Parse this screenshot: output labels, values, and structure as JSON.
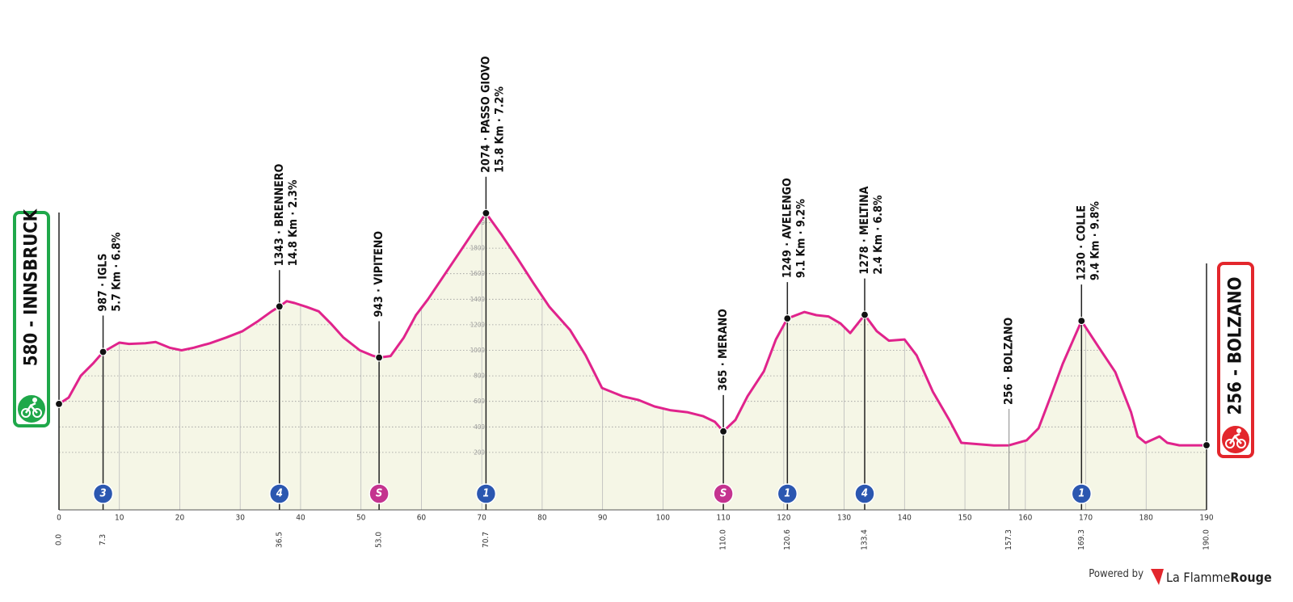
{
  "chart_data": {
    "type": "area",
    "color": "#e0238c",
    "fill": "#f5f6e6",
    "grid": true,
    "xlim": [
      0,
      190
    ],
    "xticks": [
      0,
      10,
      20,
      30,
      40,
      50,
      60,
      70,
      80,
      90,
      100,
      110,
      120,
      130,
      140,
      150,
      160,
      170,
      180,
      190
    ],
    "ylim": [
      -250,
      2500
    ],
    "yticks": [
      200,
      400,
      600,
      800,
      1000,
      1200,
      1400,
      1600,
      1800,
      2000
    ],
    "x": [
      0,
      1.6,
      3.6,
      5.6,
      7.3,
      10,
      11.6,
      14.3,
      16,
      18.3,
      20.3,
      22.3,
      25,
      27.7,
      30.4,
      33,
      35.2,
      36.5,
      37.7,
      39,
      41,
      43,
      45,
      47.1,
      49.8,
      51.8,
      53,
      54.9,
      57.1,
      59.1,
      61.1,
      63.8,
      66.5,
      69.2,
      70.7,
      73.2,
      75.9,
      78.5,
      81.2,
      84.6,
      87.2,
      89.9,
      93.3,
      96,
      98.6,
      101.3,
      104,
      106.6,
      108.6,
      110,
      112,
      114,
      116.7,
      118.7,
      120.6,
      123.4,
      125.4,
      127.4,
      129.4,
      131,
      133.4,
      135.4,
      137.4,
      140,
      142,
      144.7,
      147.4,
      149.4,
      152.1,
      154.8,
      157.3,
      160.2,
      162.2,
      164.2,
      166.2,
      169.3,
      172.2,
      174.9,
      177.5,
      178.6,
      179.9,
      182.2,
      183.5,
      185.5,
      190
    ],
    "values": [
      580,
      630,
      800,
      895,
      987,
      1060,
      1050,
      1055,
      1065,
      1020,
      1000,
      1020,
      1055,
      1100,
      1150,
      1230,
      1305,
      1343,
      1385,
      1370,
      1340,
      1305,
      1210,
      1100,
      1000,
      960,
      943,
      955,
      1100,
      1275,
      1400,
      1590,
      1780,
      1970,
      2074,
      1910,
      1720,
      1530,
      1340,
      1160,
      960,
      705,
      640,
      610,
      560,
      530,
      515,
      485,
      440,
      365,
      455,
      640,
      835,
      1085,
      1249,
      1300,
      1275,
      1265,
      1210,
      1135,
      1278,
      1150,
      1075,
      1085,
      960,
      675,
      455,
      275,
      265,
      255,
      256,
      295,
      390,
      640,
      895,
      1230,
      1020,
      830,
      515,
      325,
      275,
      325,
      275,
      256,
      256
    ],
    "start": {
      "label": "580 - INNSBRUCK",
      "color": "#1fa84a"
    },
    "finish": {
      "label": "256 - BOLZANO",
      "color": "#e3262c"
    },
    "waypoints": [
      {
        "km": {
          "value": 0,
          "label": "0.0"
        },
        "elevation": 580
      },
      {
        "km": {
          "value": 7.3,
          "label": "7.3"
        },
        "elevation": 987,
        "label": "987 · IGLS",
        "detail": "5.7 Km · 6.8%",
        "badge": "3",
        "badge_color": "#2b57b0"
      },
      {
        "km": {
          "value": 36.5,
          "label": "36.5"
        },
        "elevation": 1343,
        "label": "1343 · BRENNERO",
        "detail": "14.8 Km · 2.3%",
        "badge": "4",
        "badge_color": "#2b57b0"
      },
      {
        "km": {
          "value": 53,
          "label": "53.0"
        },
        "elevation": 943,
        "label": "943 · VIPITENO",
        "badge": "S",
        "badge_color": "#c4338f"
      },
      {
        "km": {
          "value": 70.7,
          "label": "70.7"
        },
        "elevation": 2074,
        "label": "2074 · PASSO GIOVO",
        "detail": "15.8 Km · 7.2%",
        "badge": "1",
        "badge_color": "#2b57b0"
      },
      {
        "km": {
          "value": 110,
          "label": "110.0"
        },
        "elevation": 365,
        "label": "365 · MERANO",
        "badge": "S",
        "badge_color": "#c4338f"
      },
      {
        "km": {
          "value": 120.6,
          "label": "120.6"
        },
        "elevation": 1249,
        "label": "1249 · AVELENGO",
        "detail": "9.1 Km · 9.2%",
        "badge": "1",
        "badge_color": "#2b57b0"
      },
      {
        "km": {
          "value": 133.4,
          "label": "133.4"
        },
        "elevation": 1278,
        "label": "1278 · MELTINA",
        "detail": "2.4 Km · 6.8%",
        "badge": "4",
        "badge_color": "#2b57b0"
      },
      {
        "km": {
          "value": 157.3,
          "label": "157.3"
        },
        "elevation": 256,
        "label": "256 · BOLZANO",
        "muted": true
      },
      {
        "km": {
          "value": 169.3,
          "label": "169.3"
        },
        "elevation": 1230,
        "label": "1230 · COLLE",
        "detail": "9.4 Km · 9.8%",
        "badge": "1",
        "badge_color": "#2b57b0"
      },
      {
        "km": {
          "value": 190,
          "label": "190.0"
        },
        "elevation": 256
      }
    ]
  },
  "footer": {
    "powered": "Powered by",
    "brand": "La Flamme",
    "brand_bold": "Rouge"
  }
}
